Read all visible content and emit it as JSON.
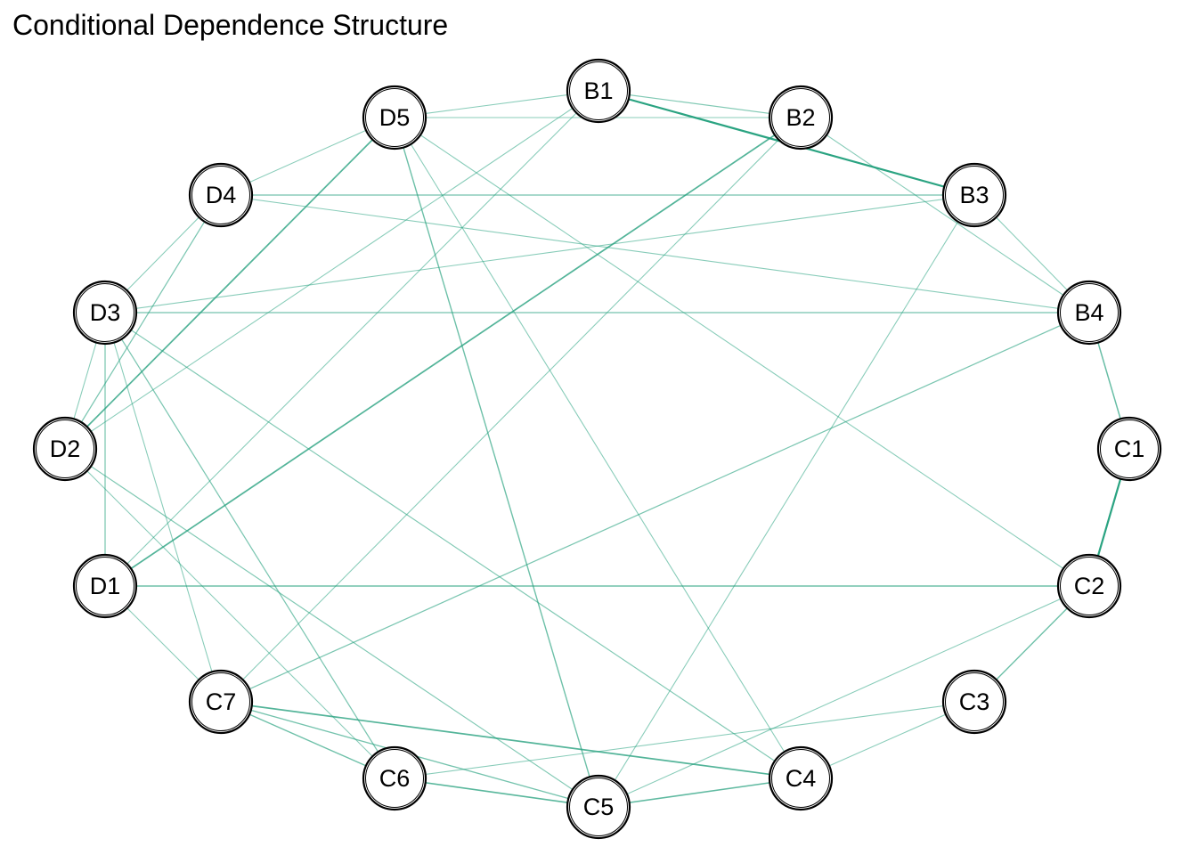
{
  "title": "Conditional Dependence Structure",
  "edge_color": "#1f9e7a",
  "nodes": [
    "B1",
    "B2",
    "B3",
    "B4",
    "C1",
    "C2",
    "C3",
    "C4",
    "C5",
    "C6",
    "C7",
    "D1",
    "D2",
    "D3",
    "D4",
    "D5"
  ],
  "edges": [
    {
      "from": "B1",
      "to": "B3",
      "weight": 1.0
    },
    {
      "from": "C1",
      "to": "C2",
      "weight": 1.0
    },
    {
      "from": "D1",
      "to": "B2",
      "weight": 0.7
    },
    {
      "from": "D2",
      "to": "D5",
      "weight": 0.7
    },
    {
      "from": "C7",
      "to": "C4",
      "weight": 0.7
    },
    {
      "from": "C6",
      "to": "C5",
      "weight": 0.65
    },
    {
      "from": "C5",
      "to": "C4",
      "weight": 0.6
    },
    {
      "from": "B4",
      "to": "C1",
      "weight": 0.55
    },
    {
      "from": "C2",
      "to": "C3",
      "weight": 0.5
    },
    {
      "from": "D1",
      "to": "C2",
      "weight": 0.5
    },
    {
      "from": "D5",
      "to": "C5",
      "weight": 0.5
    },
    {
      "from": "C7",
      "to": "C6",
      "weight": 0.5
    },
    {
      "from": "C7",
      "to": "C5",
      "weight": 0.45
    },
    {
      "from": "D3",
      "to": "B4",
      "weight": 0.45
    },
    {
      "from": "D4",
      "to": "B3",
      "weight": 0.45
    },
    {
      "from": "D3",
      "to": "C6",
      "weight": 0.4
    },
    {
      "from": "D4",
      "to": "D2",
      "weight": 0.4
    },
    {
      "from": "D3",
      "to": "D1",
      "weight": 0.4
    },
    {
      "from": "C7",
      "to": "B4",
      "weight": 0.4
    },
    {
      "from": "D3",
      "to": "C4",
      "weight": 0.35
    },
    {
      "from": "D2",
      "to": "C5",
      "weight": 0.35
    },
    {
      "from": "B1",
      "to": "B2",
      "weight": 0.35
    },
    {
      "from": "D5",
      "to": "B2",
      "weight": 0.3
    },
    {
      "from": "D5",
      "to": "B1",
      "weight": 0.3
    },
    {
      "from": "D5",
      "to": "D4",
      "weight": 0.3
    },
    {
      "from": "D5",
      "to": "C4",
      "weight": 0.3
    },
    {
      "from": "D5",
      "to": "C2",
      "weight": 0.3
    },
    {
      "from": "D4",
      "to": "B4",
      "weight": 0.3
    },
    {
      "from": "D4",
      "to": "D3",
      "weight": 0.3
    },
    {
      "from": "D3",
      "to": "B3",
      "weight": 0.3
    },
    {
      "from": "D3",
      "to": "C7",
      "weight": 0.3
    },
    {
      "from": "D3",
      "to": "D2",
      "weight": 0.3
    },
    {
      "from": "D2",
      "to": "B1",
      "weight": 0.3
    },
    {
      "from": "D2",
      "to": "C6",
      "weight": 0.3
    },
    {
      "from": "D1",
      "to": "B1",
      "weight": 0.3
    },
    {
      "from": "D1",
      "to": "C7",
      "weight": 0.3
    },
    {
      "from": "B2",
      "to": "B4",
      "weight": 0.3
    },
    {
      "from": "B2",
      "to": "C7",
      "weight": 0.3
    },
    {
      "from": "B3",
      "to": "B4",
      "weight": 0.3
    },
    {
      "from": "B3",
      "to": "C5",
      "weight": 0.3
    },
    {
      "from": "C6",
      "to": "C3",
      "weight": 0.3
    },
    {
      "from": "C5",
      "to": "C2",
      "weight": 0.3
    },
    {
      "from": "C4",
      "to": "C3",
      "weight": 0.3
    }
  ]
}
